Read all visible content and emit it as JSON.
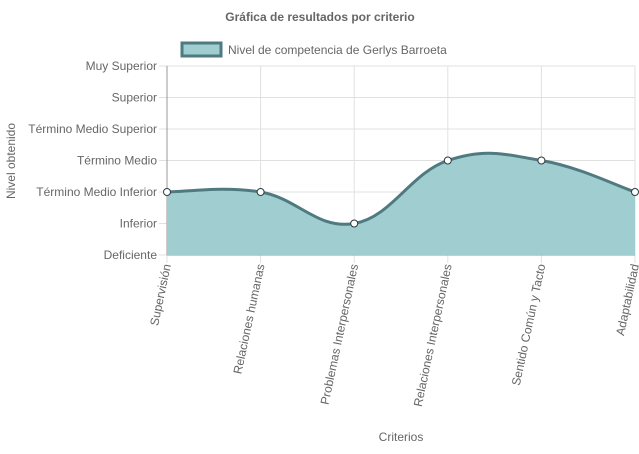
{
  "chart_data": {
    "type": "area",
    "title": "Gráfica de resultados por criterio",
    "xlabel": "Criterios",
    "ylabel": "Nivel obtenido",
    "categories": [
      "Supervisión",
      "Relaciones humanas",
      "Problemas Interpersonales",
      "Relaciones Interpersonales",
      "Sentido Común y Tacto",
      "Adaptabilidad"
    ],
    "y_levels": [
      "Deficiente",
      "Inferior",
      "Término Medio Inferior",
      "Término Medio",
      "Término Medio Superior",
      "Superior",
      "Muy Superior"
    ],
    "ylim": [
      0,
      6
    ],
    "series": [
      {
        "name": "Nivel de competencia de Gerlys Barroeta",
        "values": [
          2,
          2,
          1,
          3,
          3,
          2
        ]
      }
    ],
    "legend_position": "top",
    "grid": true,
    "colors": {
      "fill": "#9fcdd0",
      "line": "#4f7a80",
      "point_fill": "#ffffff",
      "point_stroke": "#2f3b3e",
      "grid": "#e0e0e0",
      "axis": "#999999",
      "text": "#666666"
    }
  }
}
